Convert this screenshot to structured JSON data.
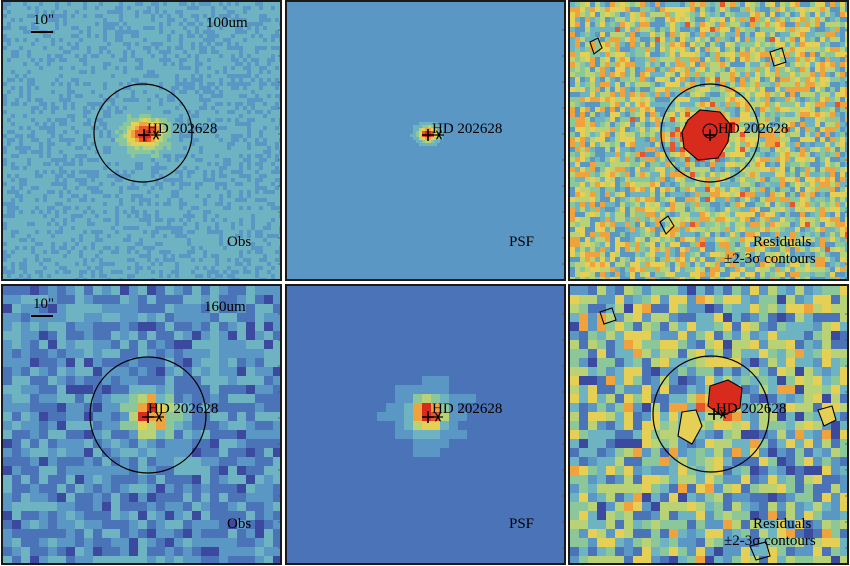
{
  "rows": [
    {
      "band": "100um",
      "scale_label": "10\"",
      "target": "HD 202628",
      "panels": [
        {
          "id": "obs",
          "caption": "Obs",
          "style": "smooth-blob"
        },
        {
          "id": "psf",
          "caption": "PSF",
          "style": "psf-flat"
        },
        {
          "id": "res",
          "caption": "Residuals",
          "caption2": "±2-3σ contours",
          "style": "noise"
        }
      ],
      "axis_ticks": [
        "60",
        "50",
        "40",
        "30",
        "20",
        "10"
      ]
    },
    {
      "band": "160um",
      "scale_label": "10\"",
      "target": "HD 202628",
      "panels": [
        {
          "id": "obs",
          "caption": "Obs",
          "style": "pixel-blob"
        },
        {
          "id": "psf",
          "caption": "PSF",
          "style": "psf-halo"
        },
        {
          "id": "res",
          "caption": "Residuals",
          "caption2": "±2-3σ contours",
          "style": "noise"
        }
      ],
      "axis_ticks": [
        "30",
        "20",
        "10"
      ]
    }
  ],
  "colors": {
    "cool": "#3b5aa8",
    "mid": "#5fa8c8",
    "green": "#93c78a",
    "yellow": "#e8c44c",
    "hot": "#e03a22",
    "contour": "#000000"
  },
  "markers": {
    "source": "+",
    "star": "✶"
  }
}
